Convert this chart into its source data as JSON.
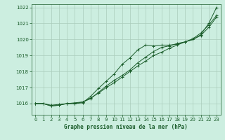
{
  "title": "Graphe pression niveau de la mer (hPa)",
  "background_color": "#cceee0",
  "grid_color": "#aaccbb",
  "line_color": "#1a5c2a",
  "x_ticks": [
    0,
    1,
    2,
    3,
    4,
    5,
    6,
    7,
    8,
    9,
    10,
    11,
    12,
    13,
    14,
    15,
    16,
    17,
    18,
    19,
    20,
    21,
    22,
    23
  ],
  "y_ticks": [
    1016,
    1017,
    1018,
    1019,
    1020,
    1021,
    1022
  ],
  "ylim": [
    1015.3,
    1022.2
  ],
  "xlim": [
    -0.5,
    23.5
  ],
  "series1_straight": [
    1016.0,
    1016.0,
    1015.9,
    1015.95,
    1016.0,
    1016.05,
    1016.1,
    1016.35,
    1016.65,
    1017.0,
    1017.3,
    1017.65,
    1018.0,
    1018.35,
    1018.65,
    1019.0,
    1019.2,
    1019.45,
    1019.65,
    1019.85,
    1020.05,
    1020.4,
    1020.9,
    1021.5
  ],
  "series2_upper": [
    1016.0,
    1016.0,
    1015.85,
    1015.9,
    1016.0,
    1016.0,
    1016.05,
    1016.45,
    1016.95,
    1017.4,
    1017.85,
    1018.45,
    1018.85,
    1019.35,
    1019.65,
    1019.6,
    1019.65,
    1019.65,
    1019.7,
    1019.85,
    1020.0,
    1020.3,
    1021.0,
    1022.0
  ],
  "series3_lower": [
    1016.0,
    1016.0,
    1015.85,
    1015.9,
    1016.0,
    1016.0,
    1016.1,
    1016.3,
    1016.7,
    1017.1,
    1017.45,
    1017.75,
    1018.1,
    1018.55,
    1018.9,
    1019.25,
    1019.5,
    1019.6,
    1019.75,
    1019.85,
    1020.0,
    1020.25,
    1020.75,
    1021.4
  ]
}
